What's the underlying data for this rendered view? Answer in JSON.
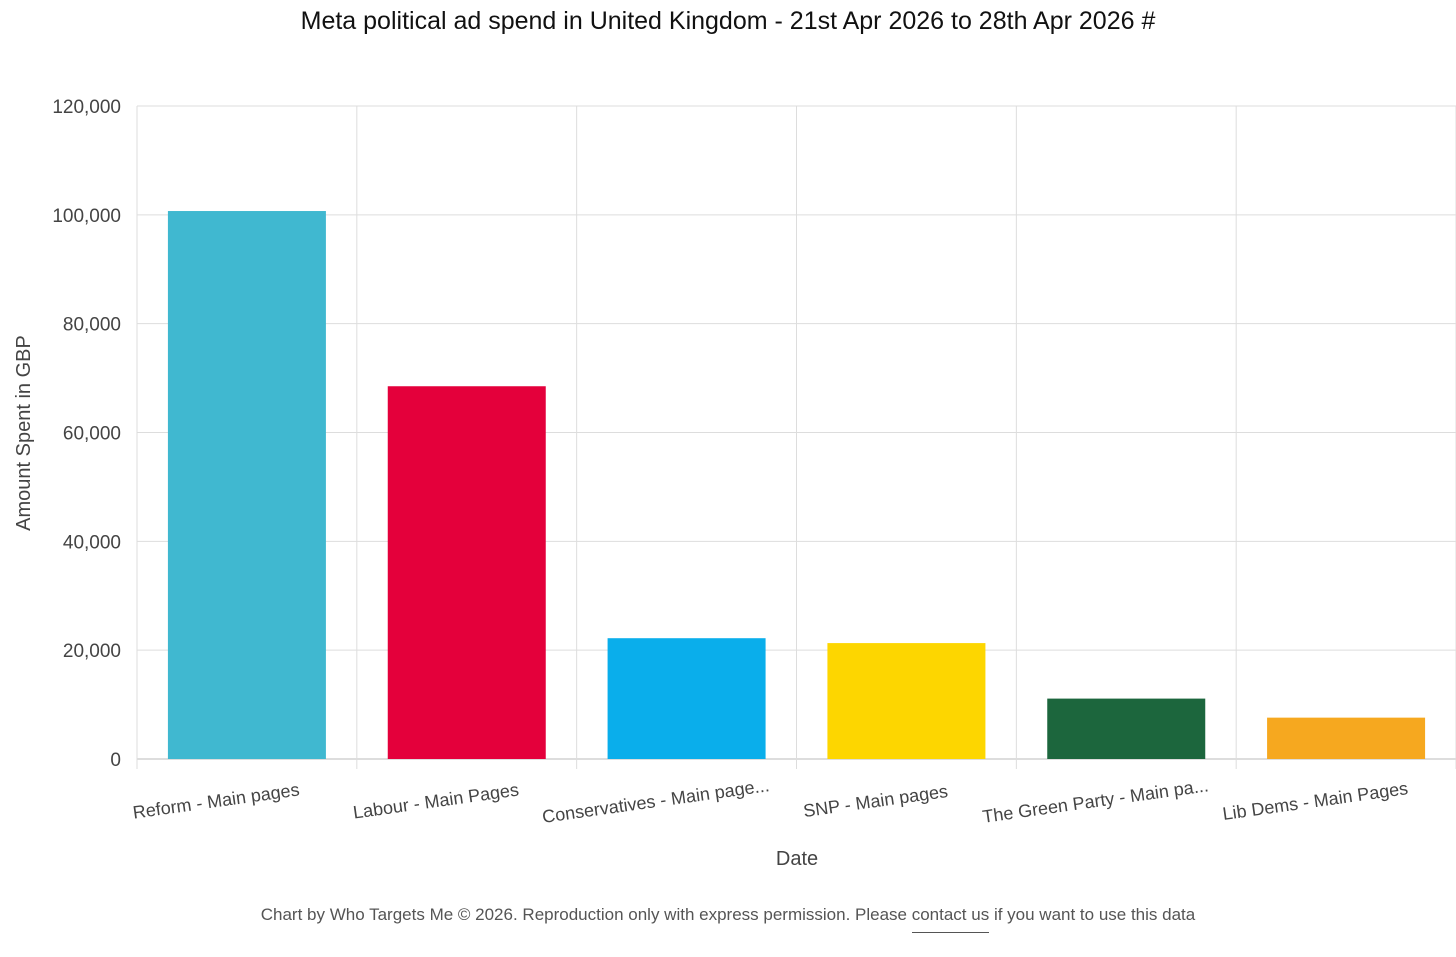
{
  "chart_data": {
    "type": "bar",
    "title": "Meta political ad spend in United Kingdom - 21st Apr 2026 to 28th Apr 2026 #",
    "xlabel": "Date",
    "ylabel": "Amount Spent in GBP",
    "ylim": [
      0,
      120000
    ],
    "yticks": [
      0,
      20000,
      40000,
      60000,
      80000,
      100000,
      120000
    ],
    "ytick_labels": [
      "0",
      "20,000",
      "40,000",
      "60,000",
      "80,000",
      "100,000",
      "120,000"
    ],
    "categories": [
      "Reform - Main pages",
      "Labour - Main Pages",
      "Conservatives - Main page...",
      "SNP - Main pages",
      "The Green Party - Main pa...",
      "Lib Dems - Main Pages"
    ],
    "values": [
      100700,
      68500,
      22200,
      21300,
      11100,
      7600
    ],
    "colors": [
      "#40B8D0",
      "#E4003B",
      "#0AAEEB",
      "#FDD600",
      "#1C663D",
      "#F6A81F"
    ],
    "grid": true,
    "legend": "none"
  },
  "footer": {
    "text_before": "Chart by Who Targets Me © 2026. Reproduction only with express permission. Please ",
    "link_text": "contact us",
    "text_after": " if you want to use this data"
  }
}
